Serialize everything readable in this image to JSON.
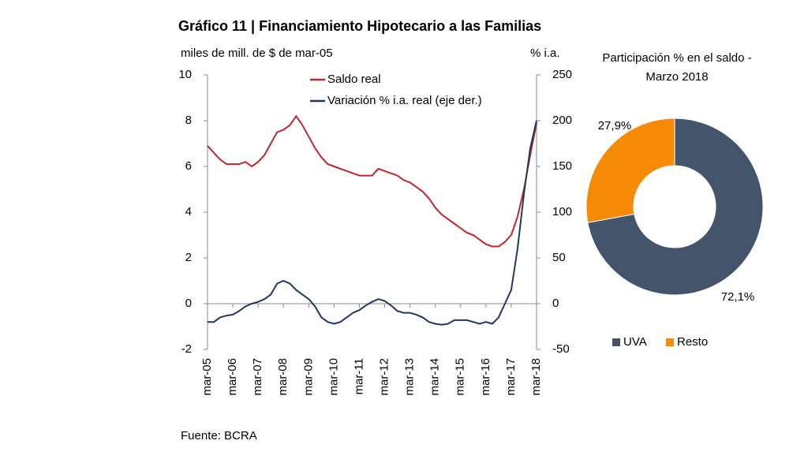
{
  "title": "Gráfico 11 | Financiamiento Hipotecario a las Familias",
  "source": "Fuente: BCRA",
  "chart_data": [
    {
      "type": "line",
      "ylabel": "miles de mill. de $ de mar-05",
      "y2label": "% i.a.",
      "categories": [
        "mar-05",
        null,
        null,
        null,
        "mar-06",
        null,
        null,
        null,
        "mar-07",
        null,
        null,
        null,
        "mar-08",
        null,
        null,
        null,
        "mar-09",
        null,
        null,
        null,
        "mar-10",
        null,
        null,
        null,
        "mar-11",
        null,
        null,
        null,
        "mar-12",
        null,
        null,
        null,
        "mar-13",
        null,
        null,
        null,
        "mar-14",
        null,
        null,
        null,
        "mar-15",
        null,
        null,
        null,
        "mar-16",
        null,
        null,
        null,
        "mar-17",
        null,
        null,
        null,
        "mar-18"
      ],
      "series": [
        {
          "name": "Saldo real",
          "color": "#c0262d",
          "values": [
            6.9,
            6.6,
            6.3,
            6.1,
            6.1,
            6.1,
            6.2,
            6.0,
            6.2,
            6.5,
            7.0,
            7.5,
            7.6,
            7.8,
            8.2,
            7.8,
            7.3,
            6.8,
            6.4,
            6.1,
            6.0,
            5.9,
            5.8,
            5.7,
            5.6,
            5.6,
            5.6,
            5.9,
            5.8,
            5.7,
            5.6,
            5.4,
            5.3,
            5.1,
            4.9,
            4.6,
            4.2,
            3.9,
            3.7,
            3.5,
            3.3,
            3.1,
            3.0,
            2.8,
            2.6,
            2.5,
            2.5,
            2.7,
            3.0,
            3.8,
            5.0,
            6.5,
            7.9
          ]
        },
        {
          "name": "Variación % i.a. real (eje der.)",
          "color": "#1f3864",
          "axis": "y2",
          "values": [
            -20,
            -20,
            -15,
            -13,
            -12,
            -8,
            -3,
            0,
            2,
            5,
            10,
            22,
            25,
            22,
            15,
            10,
            5,
            -3,
            -15,
            -20,
            -22,
            -20,
            -15,
            -10,
            -7,
            -2,
            2,
            5,
            3,
            -2,
            -8,
            -10,
            -10,
            -12,
            -15,
            -20,
            -22,
            -23,
            -22,
            -18,
            -18,
            -18,
            -20,
            -22,
            -20,
            -22,
            -15,
            0,
            15,
            60,
            120,
            170,
            200
          ]
        }
      ],
      "ylim": [
        -2,
        10
      ],
      "yticks": [
        -2,
        0,
        2,
        4,
        6,
        8,
        10
      ],
      "y2lim": [
        -50,
        250
      ],
      "y2ticks": [
        -50,
        0,
        50,
        100,
        150,
        200,
        250
      ]
    },
    {
      "type": "donut",
      "title": "Participación % en el saldo - Marzo 2018",
      "categories": [
        "UVA",
        "Resto"
      ],
      "values": [
        72.1,
        27.9
      ],
      "value_labels": [
        "72,1%",
        "27,9%"
      ],
      "colors": [
        "#44546a",
        "#f58a07"
      ]
    }
  ]
}
